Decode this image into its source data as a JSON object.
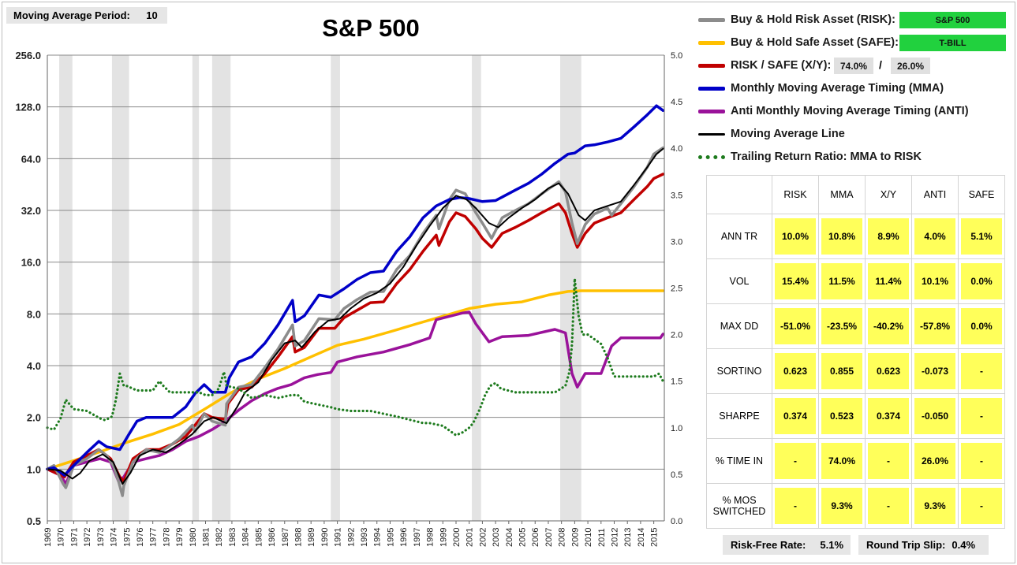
{
  "controls": {
    "ma_period_label": "Moving Average Period:",
    "ma_period_value": "10",
    "risk_free_label": "Risk-Free Rate:",
    "risk_free_value": "5.1%",
    "slip_label": "Round Trip Slip:",
    "slip_value": "0.4%"
  },
  "legend": {
    "risk": {
      "label": "Buy & Hold Risk Asset (RISK):",
      "value": "S&P 500",
      "color": "#8c8c8c"
    },
    "safe": {
      "label": "Buy & Hold Safe Asset (SAFE):",
      "value": "T-BILL",
      "color": "#ffc000"
    },
    "xy": {
      "label": "RISK / SAFE (X/Y):",
      "x_value": "74.0%",
      "slash": "/",
      "y_value": "26.0%",
      "color": "#c00000"
    },
    "mma": {
      "label": "Monthly Moving Average Timing (MMA)",
      "color": "#0000c8"
    },
    "anti": {
      "label": "Anti Monthly Moving Average Timing (ANTI)",
      "color": "#9a129a"
    },
    "ma_line": {
      "label": "Moving Average Line",
      "color": "#000000"
    },
    "ratio": {
      "label": "Trailing Return Ratio: MMA to RISK",
      "color": "#1e7b1e"
    }
  },
  "stats": {
    "columns": [
      "RISK",
      "MMA",
      "X/Y",
      "ANTI",
      "SAFE"
    ],
    "rows": [
      {
        "label": "ANN TR",
        "values": [
          "10.0%",
          "10.8%",
          "8.9%",
          "4.0%",
          "5.1%"
        ]
      },
      {
        "label": "VOL",
        "values": [
          "15.4%",
          "11.5%",
          "11.4%",
          "10.1%",
          "0.0%"
        ]
      },
      {
        "label": "MAX DD",
        "values": [
          "-51.0%",
          "-23.5%",
          "-40.2%",
          "-57.8%",
          "0.0%"
        ]
      },
      {
        "label": "SORTINO",
        "values": [
          "0.623",
          "0.855",
          "0.623",
          "-0.073",
          "-"
        ]
      },
      {
        "label": "SHARPE",
        "values": [
          "0.374",
          "0.523",
          "0.374",
          "-0.050",
          "-"
        ]
      },
      {
        "label": "% TIME IN",
        "values": [
          "-",
          "74.0%",
          "-",
          "26.0%",
          "-"
        ]
      },
      {
        "label": "% MOS SWITCHED",
        "values": [
          "-",
          "9.3%",
          "-",
          "9.3%",
          "-"
        ]
      }
    ]
  },
  "chart_data": {
    "type": "line",
    "title": "S&P 500",
    "y_scale": "log2",
    "ylim": [
      0.5,
      256
    ],
    "y_ticks": [
      "256.0",
      "128.0",
      "64.0",
      "32.0",
      "16.0",
      "8.0",
      "4.0",
      "2.0",
      "1.0",
      "0.5"
    ],
    "y2lim": [
      0,
      5
    ],
    "y2_ticks": [
      "5.0",
      "4.5",
      "4.0",
      "3.5",
      "3.0",
      "2.5",
      "2.0",
      "1.5",
      "1.0",
      "0.5",
      "0.0"
    ],
    "xlim": [
      1969,
      2015.8
    ],
    "x_ticks": [
      "1969",
      "1970",
      "1971",
      "1972",
      "1973",
      "1974",
      "1975",
      "1976",
      "1977",
      "1978",
      "1979",
      "1980",
      "1981",
      "1982",
      "1983",
      "1984",
      "1985",
      "1986",
      "1987",
      "1988",
      "1989",
      "1990",
      "1991",
      "1992",
      "1993",
      "1994",
      "1995",
      "1996",
      "1997",
      "1998",
      "1999",
      "2000",
      "2001",
      "2002",
      "2003",
      "2004",
      "2005",
      "2006",
      "2007",
      "2008",
      "2009",
      "2010",
      "2011",
      "2012",
      "2013",
      "2014",
      "2015"
    ],
    "recessions": [
      [
        1969.9,
        1970.9
      ],
      [
        1973.9,
        1975.2
      ],
      [
        1980.0,
        1980.5
      ],
      [
        1981.5,
        1982.9
      ],
      [
        1990.5,
        1991.2
      ],
      [
        2001.2,
        2001.9
      ],
      [
        2007.9,
        2009.5
      ]
    ],
    "grid": true,
    "series": [
      {
        "name": "Buy & Hold Risk Asset (RISK)",
        "axis": "left",
        "color": "#8c8c8c",
        "x": [
          1969.0,
          1969.5,
          1970.2,
          1970.4,
          1971.0,
          1972.0,
          1972.9,
          1973.5,
          1974.0,
          1974.4,
          1974.7,
          1974.8,
          1975.5,
          1976.5,
          1977.5,
          1978.2,
          1979.0,
          1980.0,
          1980.2,
          1980.9,
          1981.5,
          1982.5,
          1982.6,
          1983.5,
          1984.5,
          1985.5,
          1986.5,
          1987.6,
          1987.8,
          1988.5,
          1989.6,
          1990.8,
          1991.5,
          1992.5,
          1993.5,
          1994.5,
          1995.5,
          1996.5,
          1997.5,
          1998.5,
          1998.7,
          1999.5,
          2000.0,
          2000.7,
          2001.5,
          2002.0,
          2002.7,
          2003.5,
          2004.5,
          2005.5,
          2006.5,
          2007.8,
          2008.3,
          2008.8,
          2009.2,
          2009.8,
          2010.5,
          2011.5,
          2011.8,
          2012.5,
          2013.5,
          2014.5,
          2015.0,
          2015.7
        ],
        "values": [
          1.0,
          1.05,
          0.82,
          0.78,
          1.05,
          1.15,
          1.3,
          1.2,
          1.05,
          0.85,
          0.7,
          0.8,
          1.1,
          1.3,
          1.25,
          1.35,
          1.5,
          1.8,
          1.65,
          2.1,
          1.9,
          1.8,
          2.4,
          3.0,
          3.1,
          3.9,
          5.0,
          6.9,
          5.2,
          5.6,
          7.5,
          7.4,
          8.6,
          9.7,
          10.7,
          10.8,
          14.5,
          17.5,
          23.5,
          30.0,
          25.0,
          37.0,
          42.0,
          40.0,
          31.0,
          27.0,
          22.0,
          29.0,
          32.0,
          35.0,
          40.0,
          47.0,
          41.0,
          27.0,
          20.5,
          26.5,
          30.5,
          33.0,
          30.0,
          35.0,
          44.0,
          57.0,
          68.0,
          74.0
        ]
      },
      {
        "name": "Buy & Hold Safe Asset (SAFE)",
        "axis": "left",
        "color": "#ffc000",
        "x": [
          1969.0,
          1971.0,
          1973.0,
          1975.0,
          1977.0,
          1979.0,
          1981.0,
          1983.0,
          1985.0,
          1987.0,
          1989.0,
          1991.0,
          1993.0,
          1995.0,
          1997.0,
          1999.0,
          2001.0,
          2003.0,
          2005.0,
          2007.0,
          2008.5,
          2009.5,
          2012.0,
          2015.7
        ],
        "values": [
          1.0,
          1.12,
          1.26,
          1.43,
          1.6,
          1.82,
          2.25,
          2.8,
          3.35,
          3.85,
          4.5,
          5.25,
          5.7,
          6.3,
          7.0,
          7.75,
          8.6,
          9.1,
          9.4,
          10.3,
          10.8,
          10.9,
          10.9,
          10.9
        ]
      },
      {
        "name": "RISK / SAFE (X/Y)",
        "axis": "left",
        "color": "#c00000",
        "x": [
          1969.0,
          1970.3,
          1971.0,
          1972.0,
          1972.9,
          1973.8,
          1974.5,
          1974.8,
          1975.5,
          1976.5,
          1977.5,
          1978.5,
          1979.5,
          1980.2,
          1980.9,
          1981.5,
          1982.5,
          1982.7,
          1983.5,
          1984.5,
          1985.5,
          1986.5,
          1987.6,
          1987.8,
          1988.5,
          1989.6,
          1990.8,
          1991.5,
          1992.5,
          1993.5,
          1994.5,
          1995.5,
          1996.5,
          1997.5,
          1998.5,
          1998.7,
          1999.5,
          2000.0,
          2000.7,
          2001.5,
          2002.0,
          2002.7,
          2003.5,
          2004.5,
          2005.5,
          2006.5,
          2007.8,
          2008.3,
          2008.8,
          2009.2,
          2009.8,
          2010.5,
          2011.5,
          2012.5,
          2013.5,
          2014.5,
          2015.0,
          2015.7
        ],
        "values": [
          1.0,
          0.9,
          1.1,
          1.2,
          1.3,
          1.15,
          0.9,
          0.85,
          1.15,
          1.3,
          1.3,
          1.4,
          1.55,
          1.8,
          2.1,
          2.0,
          1.95,
          2.4,
          2.9,
          3.0,
          3.6,
          4.5,
          5.9,
          4.8,
          5.1,
          6.6,
          6.6,
          7.6,
          8.4,
          9.3,
          9.4,
          12.0,
          14.5,
          18.5,
          23.0,
          20.0,
          27.5,
          31.0,
          29.5,
          25.0,
          22.0,
          19.5,
          23.5,
          25.5,
          28.0,
          31.0,
          35.0,
          31.0,
          23.5,
          19.5,
          23.5,
          27.0,
          29.0,
          31.0,
          37.0,
          44.0,
          49.0,
          52.0
        ]
      },
      {
        "name": "Monthly Moving Average Timing (MMA)",
        "axis": "left",
        "color": "#0000c8",
        "x": [
          1969.0,
          1969.5,
          1970.3,
          1971.0,
          1972.0,
          1972.9,
          1973.5,
          1974.5,
          1975.2,
          1975.8,
          1976.5,
          1977.5,
          1978.5,
          1979.5,
          1980.2,
          1980.9,
          1981.5,
          1982.5,
          1982.8,
          1983.5,
          1984.5,
          1985.5,
          1986.5,
          1987.6,
          1987.8,
          1988.5,
          1989.6,
          1990.5,
          1991.5,
          1992.5,
          1993.5,
          1994.5,
          1995.5,
          1996.5,
          1997.5,
          1998.5,
          1999.5,
          2000.3,
          2001.0,
          2002.0,
          2003.0,
          2004.5,
          2005.5,
          2006.5,
          2007.5,
          2008.5,
          2009.0,
          2009.8,
          2010.5,
          2011.5,
          2012.5,
          2013.5,
          2014.5,
          2015.2,
          2015.7
        ],
        "values": [
          1.0,
          1.02,
          0.92,
          1.05,
          1.25,
          1.45,
          1.35,
          1.3,
          1.6,
          1.9,
          2.0,
          2.0,
          2.0,
          2.3,
          2.75,
          3.1,
          2.8,
          2.8,
          3.4,
          4.2,
          4.5,
          5.4,
          6.9,
          9.6,
          7.2,
          7.8,
          10.3,
          10.0,
          11.2,
          12.7,
          13.9,
          14.2,
          18.5,
          22.5,
          29.0,
          34.0,
          37.0,
          38.0,
          37.5,
          36.0,
          36.5,
          42.0,
          46.0,
          52.0,
          60.0,
          68.0,
          69.0,
          76.0,
          77.0,
          80.0,
          84.0,
          98.0,
          115.0,
          130.0,
          122.0
        ]
      },
      {
        "name": "Anti Monthly Moving Average Timing (ANTI)",
        "axis": "left",
        "color": "#9a129a",
        "x": [
          1969.0,
          1970.0,
          1970.4,
          1971.0,
          1972.0,
          1973.0,
          1973.8,
          1974.4,
          1974.8,
          1975.5,
          1976.5,
          1977.5,
          1978.5,
          1979.5,
          1980.5,
          1981.5,
          1982.5,
          1983.5,
          1984.5,
          1985.5,
          1986.5,
          1987.5,
          1988.5,
          1989.5,
          1990.5,
          1991.0,
          1992.5,
          1994.5,
          1996.5,
          1998.0,
          1998.5,
          2000.5,
          2001.0,
          2001.5,
          2002.5,
          2003.5,
          2005.5,
          2007.5,
          2008.3,
          2008.8,
          2009.2,
          2009.8,
          2011.0,
          2011.8,
          2012.5,
          2015.5,
          2015.7
        ],
        "values": [
          1.0,
          0.92,
          0.82,
          1.05,
          1.1,
          1.15,
          1.1,
          0.85,
          0.9,
          1.1,
          1.15,
          1.2,
          1.3,
          1.45,
          1.55,
          1.7,
          1.9,
          2.2,
          2.5,
          2.75,
          2.95,
          3.1,
          3.4,
          3.55,
          3.65,
          4.2,
          4.5,
          4.8,
          5.3,
          5.8,
          7.4,
          8.1,
          8.2,
          7.0,
          5.5,
          5.9,
          6.0,
          6.5,
          6.2,
          3.6,
          3.0,
          3.6,
          3.6,
          5.2,
          5.8,
          5.8,
          6.1
        ]
      },
      {
        "name": "Moving Average Line",
        "axis": "left",
        "color": "#000000",
        "x": [
          1969.0,
          1970.0,
          1970.9,
          1971.5,
          1972.2,
          1973.2,
          1974.0,
          1974.7,
          1975.3,
          1976.0,
          1977.0,
          1978.0,
          1979.0,
          1980.0,
          1980.9,
          1981.6,
          1982.6,
          1983.4,
          1984.0,
          1985.0,
          1986.0,
          1987.0,
          1987.8,
          1988.3,
          1989.3,
          1990.3,
          1991.2,
          1992.0,
          1993.0,
          1994.0,
          1995.0,
          1996.0,
          1997.0,
          1998.0,
          1999.0,
          2000.0,
          2000.8,
          2001.5,
          2002.5,
          2003.2,
          2004.0,
          2005.0,
          2006.0,
          2007.0,
          2007.8,
          2008.5,
          2009.3,
          2009.8,
          2010.5,
          2011.5,
          2012.5,
          2013.5,
          2014.5,
          2015.2,
          2015.7
        ],
        "values": [
          1.0,
          0.98,
          0.88,
          0.95,
          1.12,
          1.22,
          1.1,
          0.82,
          0.95,
          1.2,
          1.3,
          1.25,
          1.4,
          1.6,
          1.9,
          2.0,
          1.85,
          2.3,
          2.8,
          3.2,
          4.3,
          5.4,
          5.6,
          5.1,
          6.3,
          7.3,
          7.5,
          8.6,
          9.8,
          10.6,
          12.0,
          15.0,
          20.0,
          26.0,
          33.0,
          39.0,
          37.0,
          33.0,
          27.0,
          25.5,
          29.0,
          33.0,
          37.0,
          43.0,
          46.0,
          40.0,
          30.0,
          28.0,
          32.0,
          34.0,
          36.0,
          45.0,
          57.0,
          68.0,
          73.0
        ]
      },
      {
        "name": "Trailing Return Ratio: MMA to RISK",
        "axis": "right",
        "color": "#1e7b1e",
        "x": [
          1969.0,
          1969.5,
          1970.0,
          1970.4,
          1970.7,
          1971.0,
          1972.0,
          1973.0,
          1973.4,
          1973.9,
          1974.2,
          1974.5,
          1974.8,
          1975.0,
          1975.8,
          1977.0,
          1977.5,
          1977.8,
          1978.3,
          1979.5,
          1980.5,
          1981.0,
          1981.5,
          1982.0,
          1982.4,
          1982.6,
          1983.5,
          1984.5,
          1985.5,
          1986.5,
          1987.5,
          1988.0,
          1988.5,
          1989.5,
          1990.5,
          1991.0,
          1992.0,
          1993.5,
          1995.5,
          1997.5,
          1998.0,
          1999.0,
          2000.0,
          2000.5,
          2001.0,
          2001.3,
          2001.8,
          2002.2,
          2002.6,
          2003.0,
          2003.4,
          2004.5,
          2006.0,
          2007.5,
          2008.3,
          2008.6,
          2008.8,
          2009.0,
          2009.3,
          2009.6,
          2010.0,
          2010.5,
          2011.0,
          2011.5,
          2012.0,
          2013.0,
          2014.0,
          2015.0,
          2015.4,
          2015.7
        ],
        "values": [
          1.0,
          0.98,
          1.1,
          1.3,
          1.25,
          1.2,
          1.18,
          1.1,
          1.08,
          1.12,
          1.3,
          1.58,
          1.45,
          1.45,
          1.4,
          1.4,
          1.5,
          1.45,
          1.38,
          1.38,
          1.38,
          1.35,
          1.35,
          1.42,
          1.6,
          1.45,
          1.42,
          1.32,
          1.35,
          1.32,
          1.35,
          1.35,
          1.28,
          1.25,
          1.22,
          1.2,
          1.18,
          1.18,
          1.12,
          1.05,
          1.05,
          1.02,
          0.92,
          0.95,
          1.0,
          1.05,
          1.2,
          1.35,
          1.45,
          1.48,
          1.42,
          1.38,
          1.38,
          1.38,
          1.45,
          1.6,
          1.9,
          2.6,
          2.2,
          2.0,
          2.0,
          1.95,
          1.9,
          1.75,
          1.55,
          1.55,
          1.55,
          1.55,
          1.58,
          1.5
        ]
      }
    ]
  }
}
